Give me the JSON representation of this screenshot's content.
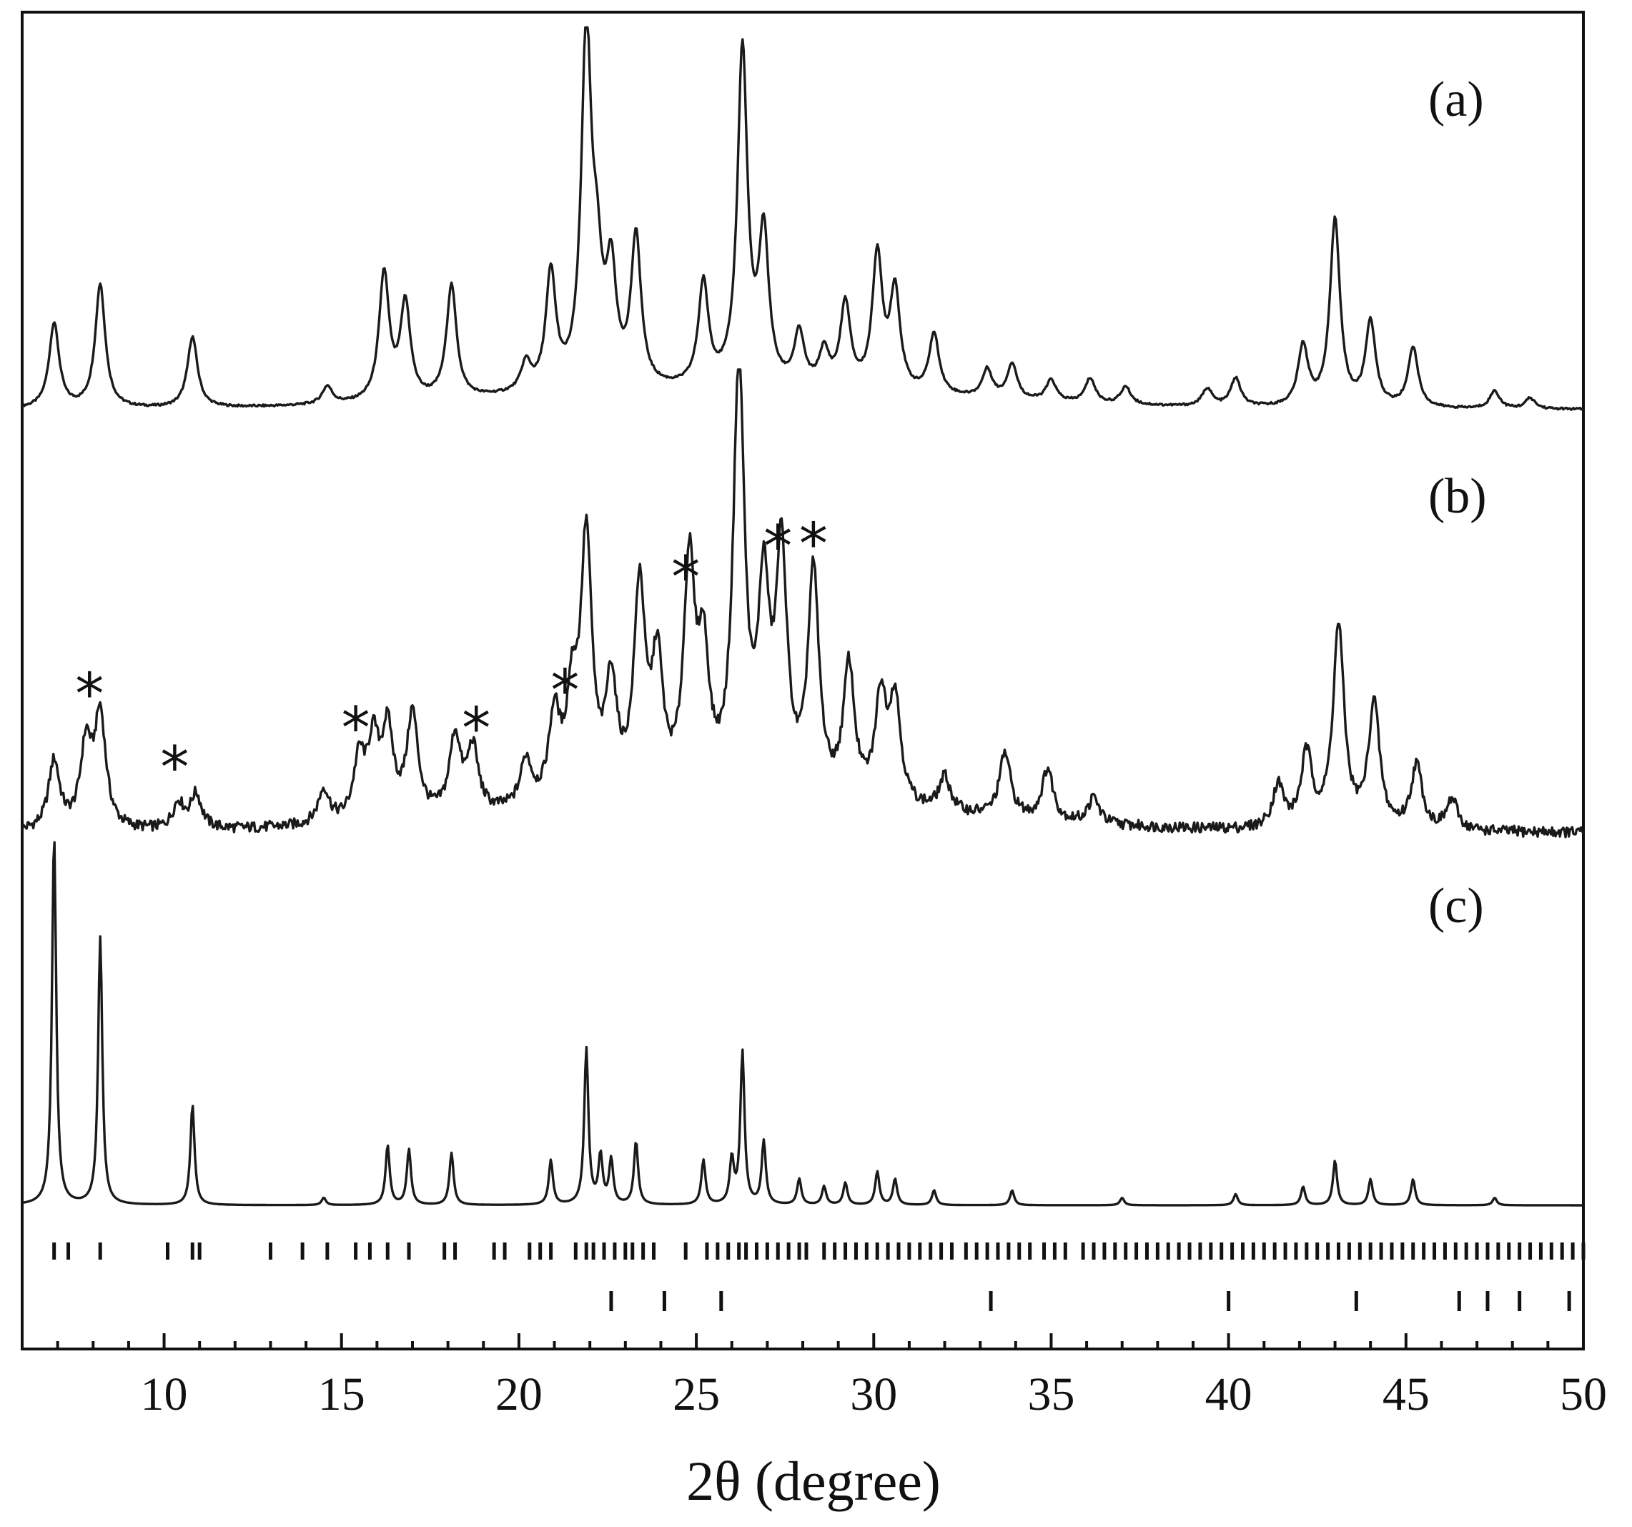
{
  "chart_data": {
    "type": "line",
    "xlabel": "2θ (degree)",
    "ylabel": "",
    "xlim": [
      6,
      50
    ],
    "xticks": [
      "10",
      "15",
      "20",
      "25",
      "30",
      "35",
      "40",
      "45",
      "50"
    ],
    "xtick_values": [
      10,
      15,
      20,
      25,
      30,
      35,
      40,
      45,
      50
    ],
    "y_ticks_shown": false,
    "grid": false,
    "stacked_offset": true,
    "series": [
      {
        "name": "(a)",
        "baseline": 0.05,
        "peaks": [
          {
            "x": 6.9,
            "y": 0.24
          },
          {
            "x": 8.2,
            "y": 0.35
          },
          {
            "x": 10.8,
            "y": 0.2
          },
          {
            "x": 14.6,
            "y": 0.05
          },
          {
            "x": 16.2,
            "y": 0.36
          },
          {
            "x": 16.8,
            "y": 0.27
          },
          {
            "x": 18.1,
            "y": 0.32
          },
          {
            "x": 20.2,
            "y": 0.08
          },
          {
            "x": 20.9,
            "y": 0.33
          },
          {
            "x": 21.9,
            "y": 1.0
          },
          {
            "x": 22.2,
            "y": 0.27
          },
          {
            "x": 22.6,
            "y": 0.31
          },
          {
            "x": 23.3,
            "y": 0.42
          },
          {
            "x": 25.2,
            "y": 0.29
          },
          {
            "x": 26.3,
            "y": 0.95
          },
          {
            "x": 26.9,
            "y": 0.42
          },
          {
            "x": 27.9,
            "y": 0.15
          },
          {
            "x": 28.6,
            "y": 0.1
          },
          {
            "x": 29.2,
            "y": 0.24
          },
          {
            "x": 30.1,
            "y": 0.38
          },
          {
            "x": 30.6,
            "y": 0.28
          },
          {
            "x": 31.7,
            "y": 0.17
          },
          {
            "x": 33.2,
            "y": 0.08
          },
          {
            "x": 33.9,
            "y": 0.1
          },
          {
            "x": 35.0,
            "y": 0.06
          },
          {
            "x": 36.1,
            "y": 0.07
          },
          {
            "x": 37.1,
            "y": 0.05
          },
          {
            "x": 39.4,
            "y": 0.05
          },
          {
            "x": 40.2,
            "y": 0.08
          },
          {
            "x": 42.1,
            "y": 0.17
          },
          {
            "x": 43.0,
            "y": 0.53
          },
          {
            "x": 44.0,
            "y": 0.24
          },
          {
            "x": 45.2,
            "y": 0.17
          },
          {
            "x": 47.5,
            "y": 0.05
          },
          {
            "x": 48.5,
            "y": 0.03
          }
        ]
      },
      {
        "name": "(b)",
        "baseline": 0.06,
        "peaks": [
          {
            "x": 6.9,
            "y": 0.16
          },
          {
            "x": 7.8,
            "y": 0.19
          },
          {
            "x": 8.2,
            "y": 0.26
          },
          {
            "x": 10.4,
            "y": 0.06
          },
          {
            "x": 10.9,
            "y": 0.08
          },
          {
            "x": 14.5,
            "y": 0.08
          },
          {
            "x": 15.5,
            "y": 0.14
          },
          {
            "x": 15.9,
            "y": 0.17
          },
          {
            "x": 16.3,
            "y": 0.2
          },
          {
            "x": 17.0,
            "y": 0.24
          },
          {
            "x": 18.2,
            "y": 0.18
          },
          {
            "x": 18.7,
            "y": 0.15
          },
          {
            "x": 20.2,
            "y": 0.11
          },
          {
            "x": 21.0,
            "y": 0.2
          },
          {
            "x": 21.5,
            "y": 0.22
          },
          {
            "x": 21.9,
            "y": 0.6
          },
          {
            "x": 22.6,
            "y": 0.26
          },
          {
            "x": 23.4,
            "y": 0.48
          },
          {
            "x": 23.9,
            "y": 0.3
          },
          {
            "x": 24.8,
            "y": 0.52
          },
          {
            "x": 25.2,
            "y": 0.3
          },
          {
            "x": 26.2,
            "y": 1.0
          },
          {
            "x": 26.9,
            "y": 0.45
          },
          {
            "x": 27.4,
            "y": 0.55
          },
          {
            "x": 28.3,
            "y": 0.52
          },
          {
            "x": 29.3,
            "y": 0.31
          },
          {
            "x": 30.2,
            "y": 0.24
          },
          {
            "x": 30.6,
            "y": 0.24
          },
          {
            "x": 32.0,
            "y": 0.08
          },
          {
            "x": 33.7,
            "y": 0.15
          },
          {
            "x": 34.9,
            "y": 0.12
          },
          {
            "x": 36.2,
            "y": 0.06
          },
          {
            "x": 41.4,
            "y": 0.1
          },
          {
            "x": 42.2,
            "y": 0.17
          },
          {
            "x": 43.1,
            "y": 0.47
          },
          {
            "x": 44.1,
            "y": 0.29
          },
          {
            "x": 45.3,
            "y": 0.15
          },
          {
            "x": 46.3,
            "y": 0.07
          }
        ],
        "asterisk_x": [
          7.9,
          10.3,
          15.4,
          18.8,
          21.3,
          24.7,
          27.3,
          28.3
        ]
      },
      {
        "name": "(c)",
        "baseline": 0.0,
        "peaks": [
          {
            "x": 6.9,
            "y": 1.0
          },
          {
            "x": 8.2,
            "y": 0.72
          },
          {
            "x": 10.8,
            "y": 0.27
          },
          {
            "x": 14.5,
            "y": 0.02
          },
          {
            "x": 16.3,
            "y": 0.16
          },
          {
            "x": 16.9,
            "y": 0.15
          },
          {
            "x": 18.1,
            "y": 0.14
          },
          {
            "x": 20.9,
            "y": 0.12
          },
          {
            "x": 21.9,
            "y": 0.42
          },
          {
            "x": 22.3,
            "y": 0.13
          },
          {
            "x": 22.6,
            "y": 0.12
          },
          {
            "x": 23.3,
            "y": 0.17
          },
          {
            "x": 25.2,
            "y": 0.12
          },
          {
            "x": 26.0,
            "y": 0.12
          },
          {
            "x": 26.3,
            "y": 0.41
          },
          {
            "x": 26.9,
            "y": 0.17
          },
          {
            "x": 27.9,
            "y": 0.07
          },
          {
            "x": 28.6,
            "y": 0.05
          },
          {
            "x": 29.2,
            "y": 0.06
          },
          {
            "x": 30.1,
            "y": 0.09
          },
          {
            "x": 30.6,
            "y": 0.07
          },
          {
            "x": 31.7,
            "y": 0.04
          },
          {
            "x": 33.9,
            "y": 0.04
          },
          {
            "x": 37.0,
            "y": 0.02
          },
          {
            "x": 40.2,
            "y": 0.03
          },
          {
            "x": 42.1,
            "y": 0.05
          },
          {
            "x": 43.0,
            "y": 0.12
          },
          {
            "x": 44.0,
            "y": 0.07
          },
          {
            "x": 45.2,
            "y": 0.07
          },
          {
            "x": 47.5,
            "y": 0.02
          }
        ]
      }
    ],
    "reference_ticks": {
      "row1": [
        6.9,
        7.3,
        8.2,
        10.1,
        10.8,
        11.0,
        13.0,
        13.9,
        14.6,
        15.4,
        15.8,
        16.3,
        16.9,
        17.9,
        18.2,
        19.3,
        19.6,
        20.3,
        20.6,
        20.9,
        21.6,
        21.9,
        22.1,
        22.4,
        22.7,
        23.0,
        23.2,
        23.5,
        23.8,
        24.7,
        25.3,
        25.6,
        25.9,
        26.2,
        26.4,
        26.7,
        27.0,
        27.3,
        27.6,
        27.9,
        28.1,
        28.6,
        28.9,
        29.2,
        29.5,
        29.8,
        30.1,
        30.4,
        30.7,
        31.0,
        31.3,
        31.6,
        31.9,
        32.2,
        32.6,
        32.9,
        33.2,
        33.5,
        33.8,
        34.1,
        34.4,
        34.8,
        35.1,
        35.4,
        35.9,
        36.2,
        36.5,
        36.8,
        37.1,
        37.4,
        37.7,
        38.0,
        38.3,
        38.6,
        38.9,
        39.2,
        39.5,
        39.8,
        40.1,
        40.4,
        40.7,
        41.0,
        41.3,
        41.6,
        41.9,
        42.2,
        42.5,
        42.8,
        43.1,
        43.4,
        43.7,
        44.0,
        44.3,
        44.6,
        44.9,
        45.2,
        45.5,
        45.8,
        46.1,
        46.4,
        46.7,
        47.0,
        47.3,
        47.6,
        47.9,
        48.2,
        48.5,
        48.8,
        49.1,
        49.4,
        49.7,
        50.0
      ],
      "row2": [
        22.6,
        24.1,
        25.7,
        33.3,
        40.0,
        43.6,
        46.5,
        47.3,
        48.2,
        49.6
      ]
    }
  }
}
